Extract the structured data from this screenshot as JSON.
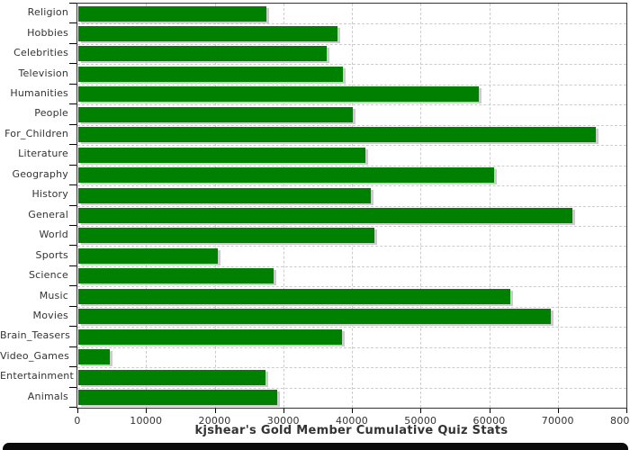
{
  "chart_data": {
    "type": "bar",
    "orientation": "horizontal",
    "title": "kjshear's Gold Member Cumulative Quiz Stats",
    "categories": [
      "Religion",
      "Hobbies",
      "Celebrities",
      "Television",
      "Humanities",
      "People",
      "For_Children",
      "Literature",
      "Geography",
      "History",
      "General",
      "World",
      "Sports",
      "Science",
      "Music",
      "Movies",
      "Brain_Teasers",
      "Video_Games",
      "Entertainment",
      "Animals"
    ],
    "values": [
      27400,
      37800,
      36200,
      38600,
      58300,
      40000,
      75400,
      41800,
      60600,
      42600,
      72000,
      43200,
      20300,
      28500,
      62900,
      68900,
      38400,
      4600,
      27300,
      29000
    ],
    "xlabel": "",
    "ylabel": "",
    "xlim": [
      0,
      80000
    ],
    "x_tick_interval": 10000,
    "x_tick_labels": [
      "0",
      "10000",
      "20000",
      "30000",
      "40000",
      "50000",
      "60000",
      "70000",
      "80000"
    ],
    "grid": "dashed-both-axes",
    "legend": "none",
    "colors": {
      "bar": "#008000",
      "bar_shadow": "#cccccc",
      "gridline": "#cccccc",
      "plot_border": "#333333",
      "axis": "#000000",
      "text": "#333333",
      "bottom_band": "#0b0b0b"
    }
  }
}
